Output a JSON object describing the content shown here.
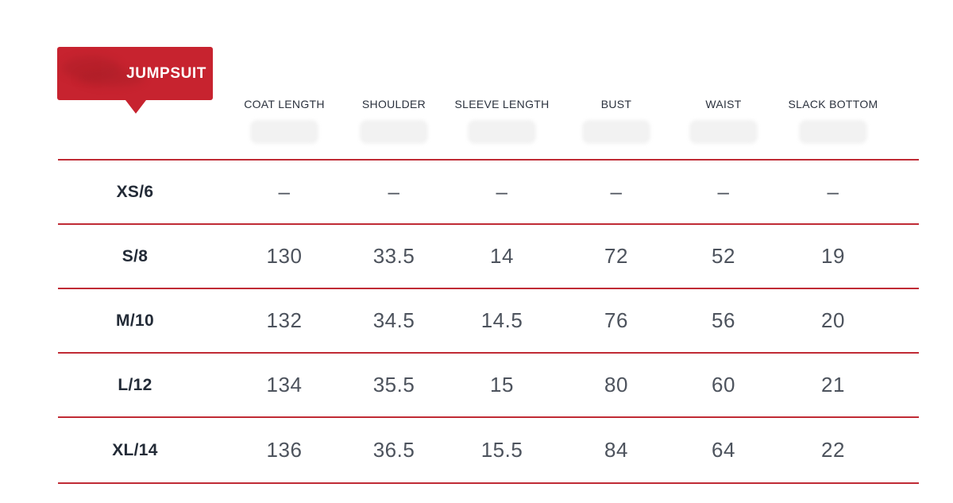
{
  "badge": {
    "label": "JUMPSUIT"
  },
  "colors": {
    "badge_red": "#c7232f",
    "rule_red": "#c02b35",
    "header_text": "#2b323e",
    "size_label_text": "#232b37",
    "value_text": "#4d535d"
  },
  "chart_data": {
    "type": "table",
    "title": "JUMPSUIT",
    "columns": [
      "COAT LENGTH",
      "SHOULDER",
      "SLEEVE LENGTH",
      "BUST",
      "WAIST",
      "SLACK BOTTOM"
    ],
    "row_labels": [
      "XS/6",
      "S/8",
      "M/10",
      "L/12",
      "XL/14"
    ],
    "rows": [
      [
        "–",
        "–",
        "–",
        "–",
        "–",
        "–"
      ],
      [
        "130",
        "33.5",
        "14",
        "72",
        "52",
        "19"
      ],
      [
        "132",
        "34.5",
        "14.5",
        "76",
        "56",
        "20"
      ],
      [
        "134",
        "35.5",
        "15",
        "80",
        "60",
        "21"
      ],
      [
        "136",
        "36.5",
        "15.5",
        "84",
        "64",
        "22"
      ]
    ],
    "grid": "horizontal-rules-only",
    "notes": "size chart table; red horizontal separators; em-dash means no value for XS/6"
  }
}
